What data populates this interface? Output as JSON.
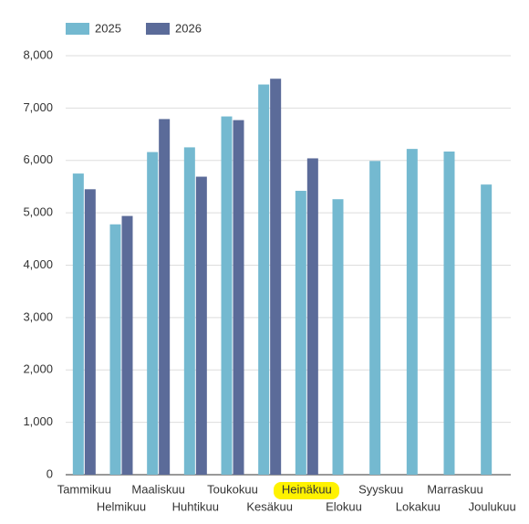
{
  "chart_data": {
    "type": "bar",
    "categories": [
      "Tammikuu",
      "Helmikuu",
      "Maaliskuu",
      "Huhtikuu",
      "Toukokuu",
      "Kesäkuu",
      "Heinäkuu",
      "Elokuu",
      "Syyskuu",
      "Lokakuu",
      "Marraskuu",
      "Joulukuu"
    ],
    "series": [
      {
        "name": "2025",
        "color": "#74b9d0",
        "values": [
          5750,
          4780,
          6160,
          6250,
          6840,
          7450,
          5420,
          5260,
          5990,
          6220,
          6170,
          5540
        ]
      },
      {
        "name": "2026",
        "color": "#5b6b99",
        "values": [
          5450,
          4940,
          6790,
          5690,
          6770,
          7560,
          6040,
          null,
          null,
          null,
          null,
          null
        ]
      }
    ],
    "ylim": [
      0,
      8000
    ],
    "yticks": [
      0,
      {
        "value": 1000,
        "label": "1,000"
      },
      {
        "value": 2000,
        "label": "2,000"
      },
      {
        "value": 3000,
        "label": "3,000"
      },
      {
        "value": 4000,
        "label": "4,000"
      },
      {
        "value": 5000,
        "label": "5,000"
      },
      {
        "value": 6000,
        "label": "6,000"
      },
      {
        "value": 7000,
        "label": "7,000"
      },
      {
        "value": 8000,
        "label": "8,000"
      }
    ],
    "grid": true
  }
}
